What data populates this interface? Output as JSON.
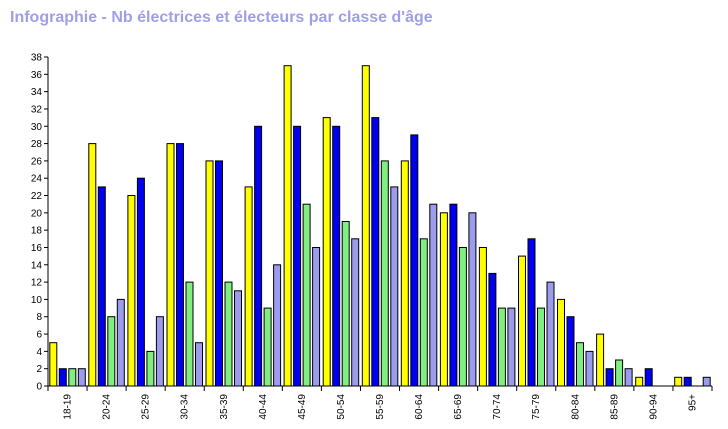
{
  "chart_data": {
    "type": "bar",
    "title": "Infographie - Nb électrices et électeurs par classe d'âge",
    "xlabel": "",
    "ylabel": "",
    "ylim": [
      0,
      38
    ],
    "yticks": [
      "0",
      "2",
      "4",
      "6",
      "8",
      "10",
      "12",
      "14",
      "16",
      "18",
      "20",
      "22",
      "24",
      "26",
      "28",
      "30",
      "32",
      "34",
      "36",
      "38"
    ],
    "categories": [
      "18-19",
      "20-24",
      "25-29",
      "30-34",
      "35-39",
      "40-44",
      "45-49",
      "50-54",
      "55-59",
      "60-64",
      "65-69",
      "70-74",
      "75-79",
      "80-84",
      "85-89",
      "90-94",
      "95+"
    ],
    "grid": false,
    "legend": "none",
    "series": [
      {
        "color": "#ffff00",
        "values": [
          5,
          28,
          22,
          28,
          26,
          23,
          37,
          31,
          37,
          26,
          20,
          16,
          15,
          10,
          6,
          1,
          1
        ]
      },
      {
        "color": "#0000ee",
        "values": [
          2,
          23,
          24,
          28,
          26,
          30,
          30,
          30,
          31,
          29,
          21,
          13,
          17,
          8,
          2,
          2,
          1
        ]
      },
      {
        "color": "#80ee80",
        "values": [
          2,
          8,
          4,
          12,
          12,
          9,
          21,
          19,
          26,
          17,
          16,
          9,
          9,
          5,
          3,
          0,
          0
        ]
      },
      {
        "color": "#9c9cee",
        "values": [
          2,
          10,
          8,
          5,
          11,
          14,
          16,
          17,
          23,
          21,
          20,
          9,
          12,
          4,
          2,
          0,
          1
        ]
      }
    ]
  }
}
